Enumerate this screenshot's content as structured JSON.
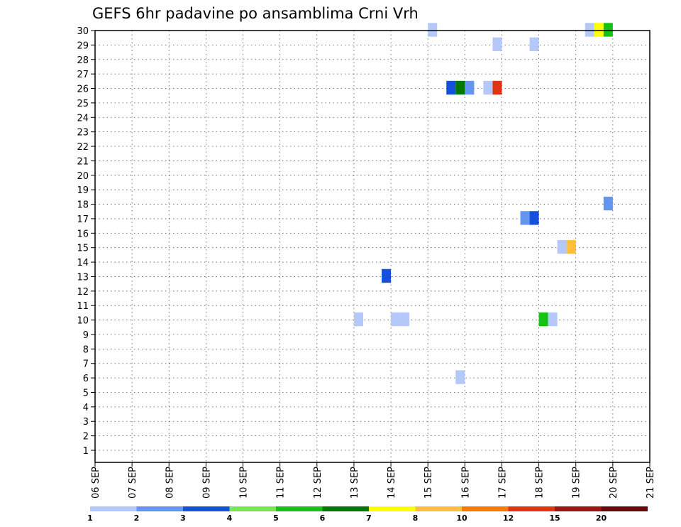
{
  "chart_data": {
    "type": "heatmap",
    "title": "GEFS 6hr padavine po ansamblima Crni Vrh",
    "xlabel": "",
    "ylabel": "",
    "x_ticks": [
      "06 SEP",
      "07 SEP",
      "08 SEP",
      "09 SEP",
      "10 SEP",
      "11 SEP",
      "12 SEP",
      "13 SEP",
      "14 SEP",
      "15 SEP",
      "16 SEP",
      "17 SEP",
      "18 SEP",
      "19 SEP",
      "20 SEP",
      "21 SEP"
    ],
    "xlim": [
      6,
      21
    ],
    "y_ticks": [
      "1",
      "2",
      "3",
      "4",
      "5",
      "6",
      "7",
      "8",
      "9",
      "10",
      "11",
      "12",
      "13",
      "14",
      "15",
      "16",
      "17",
      "18",
      "19",
      "20",
      "21",
      "22",
      "23",
      "24",
      "25",
      "26",
      "27",
      "28",
      "29",
      "30"
    ],
    "ylim": [
      0.5,
      30
    ],
    "grid": true,
    "legend": {
      "placement": "bottom",
      "labels": [
        "1",
        "2",
        "3",
        "4",
        "5",
        "6",
        "7",
        "8",
        "10",
        "12",
        "15",
        "20"
      ],
      "colors": [
        "#b4c8fa",
        "#6496f0",
        "#1450dc",
        "#78e650",
        "#14c314",
        "#007800",
        "#ffff00",
        "#ffbe3c",
        "#ff7800",
        "#e13214",
        "#a01414",
        "#640a0a"
      ]
    },
    "cells": [
      {
        "member": 30,
        "x": 15.125,
        "v": 1
      },
      {
        "member": 30,
        "x": 19.375,
        "v": 1
      },
      {
        "member": 30,
        "x": 19.625,
        "v": 7
      },
      {
        "member": 30,
        "x": 19.875,
        "v": 5
      },
      {
        "member": 29,
        "x": 16.875,
        "v": 1
      },
      {
        "member": 29,
        "x": 17.875,
        "v": 1
      },
      {
        "member": 26,
        "x": 15.625,
        "v": 3
      },
      {
        "member": 26,
        "x": 15.875,
        "v": 6
      },
      {
        "member": 26,
        "x": 16.125,
        "v": 2
      },
      {
        "member": 26,
        "x": 16.625,
        "v": 1
      },
      {
        "member": 26,
        "x": 16.875,
        "v": 12
      },
      {
        "member": 18,
        "x": 19.875,
        "v": 2
      },
      {
        "member": 17,
        "x": 17.625,
        "v": 2
      },
      {
        "member": 17,
        "x": 17.875,
        "v": 3
      },
      {
        "member": 15,
        "x": 18.625,
        "v": 1
      },
      {
        "member": 15,
        "x": 18.875,
        "v": 8
      },
      {
        "member": 13,
        "x": 13.875,
        "v": 3
      },
      {
        "member": 10,
        "x": 13.125,
        "v": 1
      },
      {
        "member": 10,
        "x": 14.125,
        "v": 1
      },
      {
        "member": 10,
        "x": 14.375,
        "v": 1
      },
      {
        "member": 10,
        "x": 18.125,
        "v": 5
      },
      {
        "member": 10,
        "x": 18.375,
        "v": 1
      },
      {
        "member": 6,
        "x": 15.875,
        "v": 1
      }
    ]
  }
}
